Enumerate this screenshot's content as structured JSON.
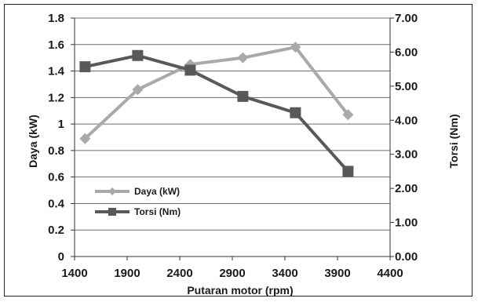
{
  "chart_data": {
    "type": "line",
    "x": [
      1500,
      2000,
      2500,
      3000,
      3500,
      4000
    ],
    "xlabel": "Putaran motor (rpm)",
    "xlim": [
      1400,
      4400
    ],
    "xticks": [
      "1400",
      "1900",
      "2400",
      "2900",
      "3400",
      "3900",
      "4400"
    ],
    "ylabel": "Daya (kW)",
    "ylim": [
      0,
      1.8
    ],
    "yticks": [
      "0",
      "0.2",
      "0.4",
      "0.6",
      "0.8",
      "1",
      "1.2",
      "1.4",
      "1.6",
      "1.8"
    ],
    "y2label": "Torsi (Nm)",
    "y2lim": [
      0,
      7
    ],
    "y2ticks": [
      "0.00",
      "1.00",
      "2.00",
      "3.00",
      "4.00",
      "5.00",
      "6.00",
      "7.00"
    ],
    "grid": "horizontal",
    "legend_position": "bottom-left",
    "series": [
      {
        "name": "Daya (kW)",
        "axis": "left",
        "marker": "diamond",
        "color": "#a9a9a9",
        "values": [
          0.89,
          1.26,
          1.45,
          1.5,
          1.58,
          1.07
        ]
      },
      {
        "name": "Torsi (Nm)",
        "axis": "right",
        "marker": "square",
        "color": "#595959",
        "values": [
          5.57,
          5.9,
          5.47,
          4.7,
          4.22,
          2.5
        ]
      }
    ]
  }
}
